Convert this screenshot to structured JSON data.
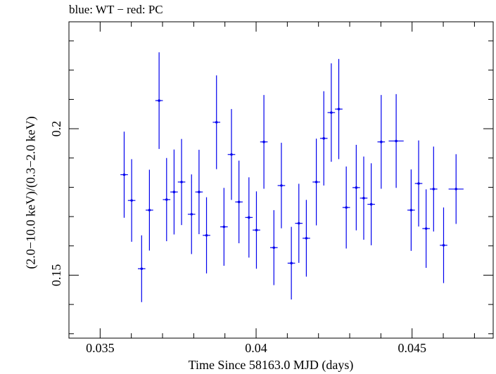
{
  "chart_data": {
    "type": "scatter",
    "title": "blue: WT − red: PC",
    "xlabel": "Time Since 58163.0 MJD (days)",
    "ylabel": "(2.0−10.0 keV)/(0.3−2.0 keV)",
    "xlim": [
      0.034,
      0.0476
    ],
    "ylim": [
      0.1285,
      0.2365
    ],
    "xticks": [
      {
        "value": 0.035,
        "label": "0.035"
      },
      {
        "value": 0.04,
        "label": "0.04"
      },
      {
        "value": 0.045,
        "label": "0.045"
      }
    ],
    "yticks": [
      {
        "value": 0.15,
        "label": "0.15"
      },
      {
        "value": 0.2,
        "label": "0.2"
      }
    ],
    "grid": false,
    "series": [
      {
        "color": "#0000ee",
        "points": [
          {
            "x": 0.03577,
            "xerr": 0.00012,
            "y": 0.1843,
            "yerr": 0.0147
          },
          {
            "x": 0.03601,
            "xerr": 0.00012,
            "y": 0.1755,
            "yerr": 0.0141
          },
          {
            "x": 0.03633,
            "xerr": 0.00012,
            "y": 0.1522,
            "yerr": 0.0114
          },
          {
            "x": 0.03658,
            "xerr": 0.00012,
            "y": 0.1722,
            "yerr": 0.0138
          },
          {
            "x": 0.03689,
            "xerr": 0.00012,
            "y": 0.2096,
            "yerr": 0.0165
          },
          {
            "x": 0.03713,
            "xerr": 0.00012,
            "y": 0.1758,
            "yerr": 0.0142
          },
          {
            "x": 0.03737,
            "xerr": 0.00012,
            "y": 0.1784,
            "yerr": 0.0145
          },
          {
            "x": 0.03761,
            "xerr": 0.00012,
            "y": 0.1818,
            "yerr": 0.0147
          },
          {
            "x": 0.03793,
            "xerr": 0.00012,
            "y": 0.1708,
            "yerr": 0.0136
          },
          {
            "x": 0.03817,
            "xerr": 0.00012,
            "y": 0.1784,
            "yerr": 0.0144
          },
          {
            "x": 0.03841,
            "xerr": 0.00012,
            "y": 0.1636,
            "yerr": 0.013
          },
          {
            "x": 0.03873,
            "xerr": 0.00012,
            "y": 0.2022,
            "yerr": 0.016
          },
          {
            "x": 0.03897,
            "xerr": 0.00012,
            "y": 0.1665,
            "yerr": 0.0133
          },
          {
            "x": 0.03921,
            "xerr": 0.00012,
            "y": 0.1912,
            "yerr": 0.0155
          },
          {
            "x": 0.03945,
            "xerr": 0.00012,
            "y": 0.175,
            "yerr": 0.0141
          },
          {
            "x": 0.03977,
            "xerr": 0.00012,
            "y": 0.1697,
            "yerr": 0.0137
          },
          {
            "x": 0.04001,
            "xerr": 0.00012,
            "y": 0.1654,
            "yerr": 0.0132
          },
          {
            "x": 0.04025,
            "xerr": 0.00012,
            "y": 0.1955,
            "yerr": 0.016
          },
          {
            "x": 0.04057,
            "xerr": 0.00012,
            "y": 0.1594,
            "yerr": 0.0128
          },
          {
            "x": 0.04081,
            "xerr": 0.00012,
            "y": 0.1806,
            "yerr": 0.0146
          },
          {
            "x": 0.04113,
            "xerr": 0.00012,
            "y": 0.1541,
            "yerr": 0.0124
          },
          {
            "x": 0.04137,
            "xerr": 0.00012,
            "y": 0.1677,
            "yerr": 0.0135
          },
          {
            "x": 0.04161,
            "xerr": 0.00012,
            "y": 0.1626,
            "yerr": 0.0131
          },
          {
            "x": 0.04193,
            "xerr": 0.00012,
            "y": 0.1818,
            "yerr": 0.0148
          },
          {
            "x": 0.04217,
            "xerr": 0.00012,
            "y": 0.1967,
            "yerr": 0.0161
          },
          {
            "x": 0.04241,
            "xerr": 0.00012,
            "y": 0.2055,
            "yerr": 0.0168
          },
          {
            "x": 0.04265,
            "xerr": 0.00012,
            "y": 0.2067,
            "yerr": 0.0171
          },
          {
            "x": 0.04289,
            "xerr": 0.00012,
            "y": 0.1731,
            "yerr": 0.014
          },
          {
            "x": 0.04321,
            "xerr": 0.00012,
            "y": 0.1799,
            "yerr": 0.0146
          },
          {
            "x": 0.04345,
            "xerr": 0.00012,
            "y": 0.1763,
            "yerr": 0.0142
          },
          {
            "x": 0.04369,
            "xerr": 0.00012,
            "y": 0.1742,
            "yerr": 0.014
          },
          {
            "x": 0.04401,
            "xerr": 0.00012,
            "y": 0.1955,
            "yerr": 0.016
          },
          {
            "x": 0.04449,
            "xerr": 0.00024,
            "y": 0.1958,
            "yerr": 0.016
          },
          {
            "x": 0.04497,
            "xerr": 0.00012,
            "y": 0.1722,
            "yerr": 0.0139
          },
          {
            "x": 0.04521,
            "xerr": 0.00012,
            "y": 0.1813,
            "yerr": 0.0147
          },
          {
            "x": 0.04545,
            "xerr": 0.00012,
            "y": 0.1659,
            "yerr": 0.0134
          },
          {
            "x": 0.04569,
            "xerr": 0.00012,
            "y": 0.1794,
            "yerr": 0.0145
          },
          {
            "x": 0.04601,
            "xerr": 0.00012,
            "y": 0.1602,
            "yerr": 0.0129
          },
          {
            "x": 0.04641,
            "xerr": 0.00024,
            "y": 0.1794,
            "yerr": 0.0119
          }
        ]
      }
    ]
  }
}
